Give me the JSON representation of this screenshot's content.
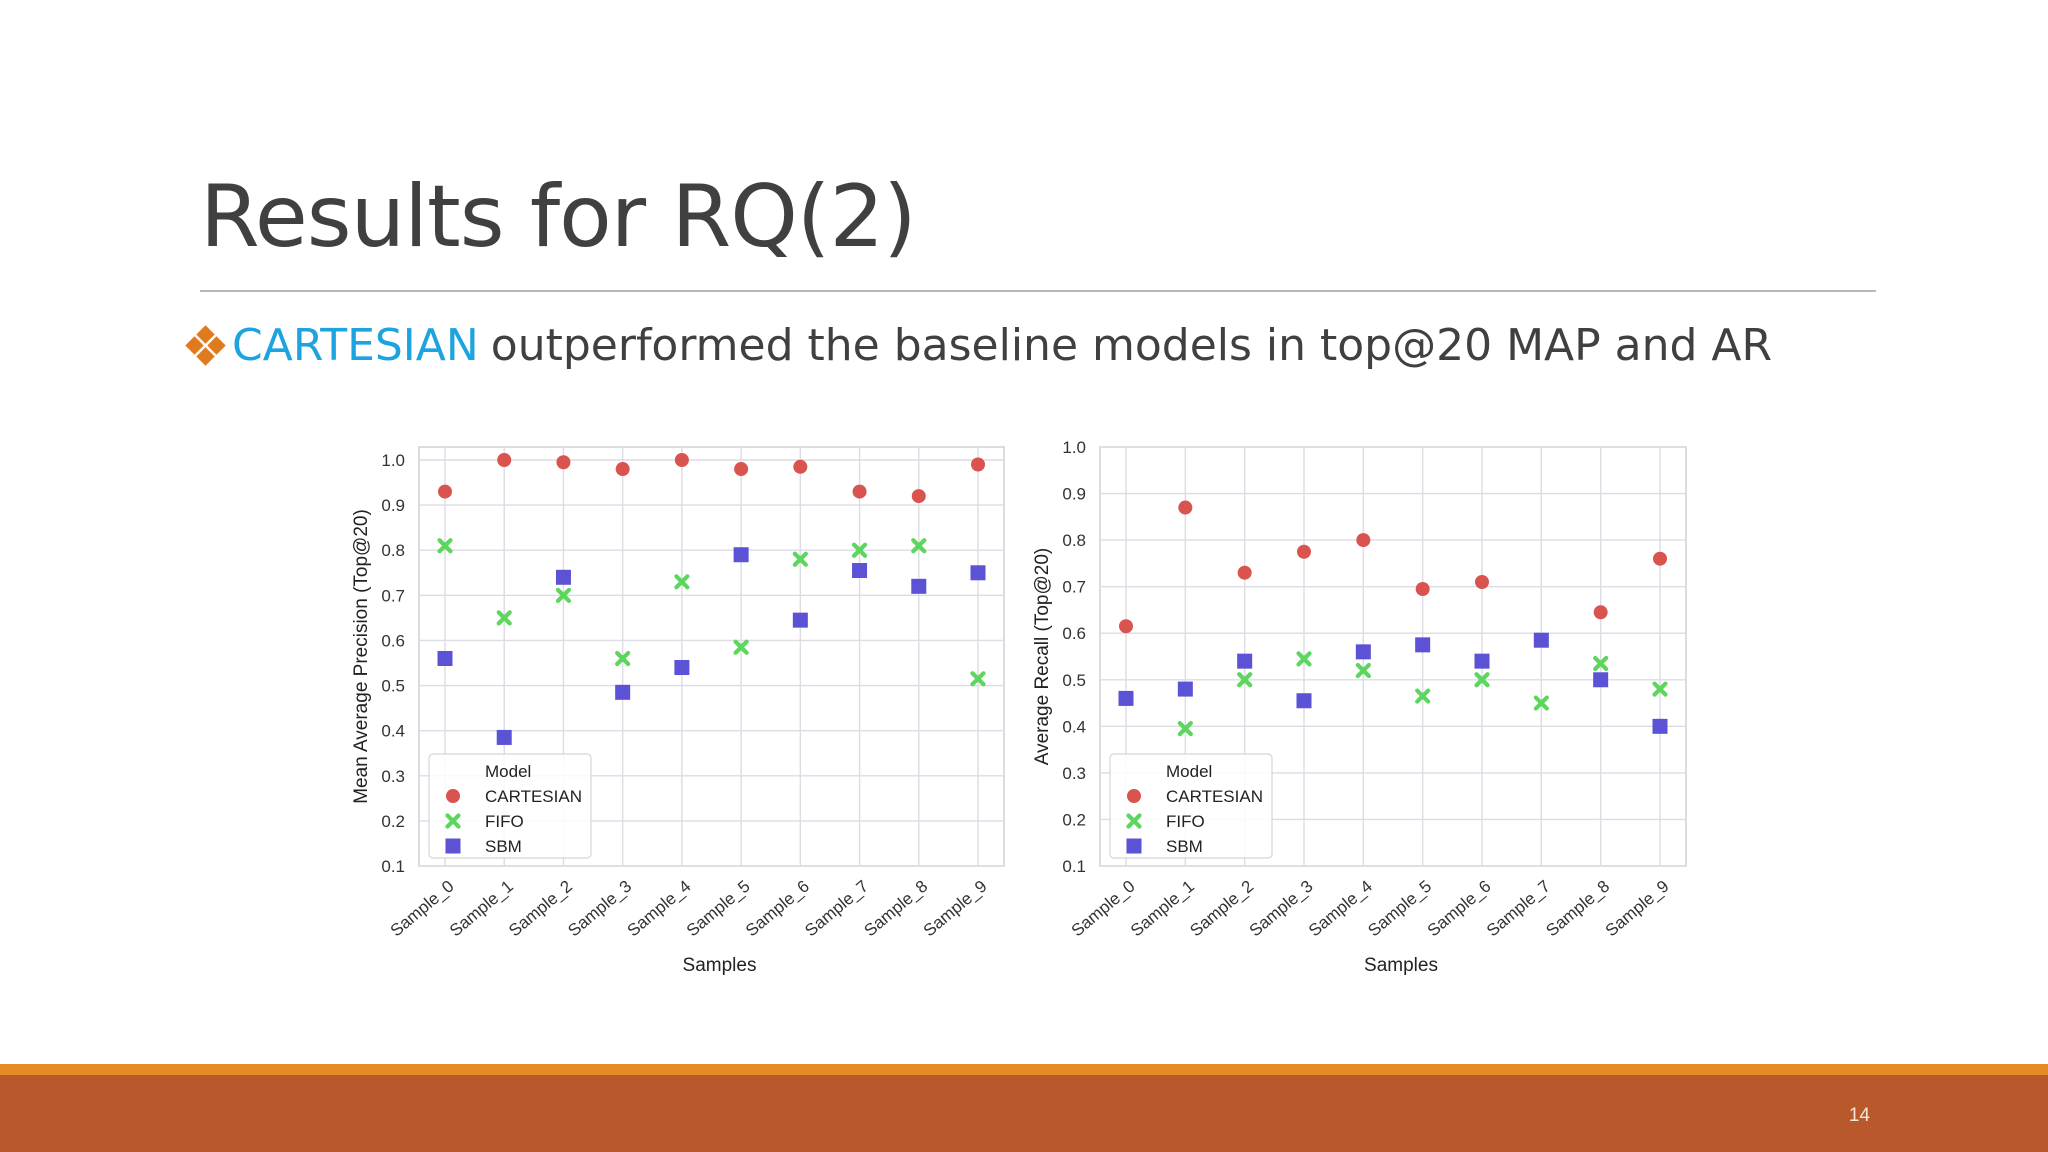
{
  "slide": {
    "title": "Results for RQ(2)",
    "bullet_highlight": "CARTESIAN",
    "bullet_rest": "outperformed the baseline models in top@20 MAP and AR",
    "page_number": "14"
  },
  "colors": {
    "accent_blue": "#1ca3e0",
    "bullet_orange": "#e07a1f",
    "footer_orange": "#e58a25",
    "footer_rust": "#b9582b",
    "cartesian": "#d9534f",
    "fifo": "#5cd65c",
    "sbm": "#5b52d6"
  },
  "chart_data": [
    {
      "type": "scatter",
      "xlabel": "Samples",
      "ylabel": "Mean Average Precision (Top@20)",
      "categories": [
        "Sample_0",
        "Sample_1",
        "Sample_2",
        "Sample_3",
        "Sample_4",
        "Sample_5",
        "Sample_6",
        "Sample_7",
        "Sample_8",
        "Sample_9"
      ],
      "ylim": [
        0.1,
        1.0
      ],
      "yticks": [
        "0.1",
        "0.2",
        "0.3",
        "0.4",
        "0.5",
        "0.6",
        "0.7",
        "0.8",
        "0.9",
        "1.0"
      ],
      "grid": true,
      "legend": {
        "title": "Model",
        "position": "bottom-left"
      },
      "series": [
        {
          "name": "CARTESIAN",
          "marker": "circle",
          "color": "#d9534f",
          "values": [
            0.93,
            1.0,
            0.995,
            0.98,
            1.0,
            0.98,
            0.985,
            0.93,
            0.92,
            0.99
          ]
        },
        {
          "name": "FIFO",
          "marker": "x",
          "color": "#5cd65c",
          "values": [
            0.81,
            0.65,
            0.7,
            0.56,
            0.73,
            0.585,
            0.78,
            0.8,
            0.81,
            0.515
          ]
        },
        {
          "name": "SBM",
          "marker": "square",
          "color": "#5b52d6",
          "values": [
            0.56,
            0.385,
            0.74,
            0.485,
            0.54,
            0.79,
            0.645,
            0.755,
            0.72,
            0.75
          ]
        }
      ]
    },
    {
      "type": "scatter",
      "xlabel": "Samples",
      "ylabel": "Average Recall (Top@20)",
      "categories": [
        "Sample_0",
        "Sample_1",
        "Sample_2",
        "Sample_3",
        "Sample_4",
        "Sample_5",
        "Sample_6",
        "Sample_7",
        "Sample_8",
        "Sample_9"
      ],
      "ylim": [
        0.1,
        1.0
      ],
      "yticks": [
        "0.1",
        "0.2",
        "0.3",
        "0.4",
        "0.5",
        "0.6",
        "0.7",
        "0.8",
        "0.9",
        "1.0"
      ],
      "grid": true,
      "legend": {
        "title": "Model",
        "position": "bottom-left"
      },
      "series": [
        {
          "name": "CARTESIAN",
          "marker": "circle",
          "color": "#d9534f",
          "values": [
            0.615,
            0.87,
            0.73,
            0.775,
            0.8,
            0.695,
            0.71,
            null,
            0.645,
            0.76
          ]
        },
        {
          "name": "FIFO",
          "marker": "x",
          "color": "#5cd65c",
          "values": [
            null,
            0.395,
            0.5,
            0.545,
            0.52,
            0.465,
            0.5,
            0.45,
            0.535,
            0.48
          ]
        },
        {
          "name": "SBM",
          "marker": "square",
          "color": "#5b52d6",
          "values": [
            0.46,
            0.48,
            0.54,
            0.455,
            0.56,
            0.575,
            0.54,
            0.585,
            0.5,
            0.4
          ]
        }
      ]
    }
  ]
}
